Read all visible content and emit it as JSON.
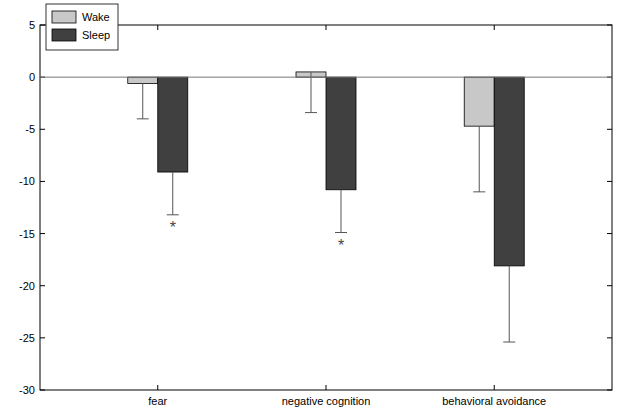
{
  "chart_data": {
    "type": "bar",
    "categories": [
      "fear",
      "negative cognition",
      "behavioral avoidance"
    ],
    "series": [
      {
        "name": "Wake",
        "color": "#c8c8c8",
        "values": [
          -0.6,
          0.5,
          -4.7
        ],
        "errors": [
          3.4,
          3.9,
          6.3
        ]
      },
      {
        "name": "Sleep",
        "color": "#404040",
        "values": [
          -9.1,
          -10.8,
          -18.1
        ],
        "errors": [
          4.1,
          4.1,
          7.3
        ]
      }
    ],
    "annotations": [
      {
        "text": "*",
        "series": 1,
        "category": 0
      },
      {
        "text": "*",
        "series": 1,
        "category": 1
      }
    ],
    "ylim": [
      -30,
      5
    ],
    "yticks": [
      -30,
      -25,
      -20,
      -15,
      -10,
      -5,
      0,
      5
    ],
    "grid": false,
    "legend": "upper left"
  }
}
